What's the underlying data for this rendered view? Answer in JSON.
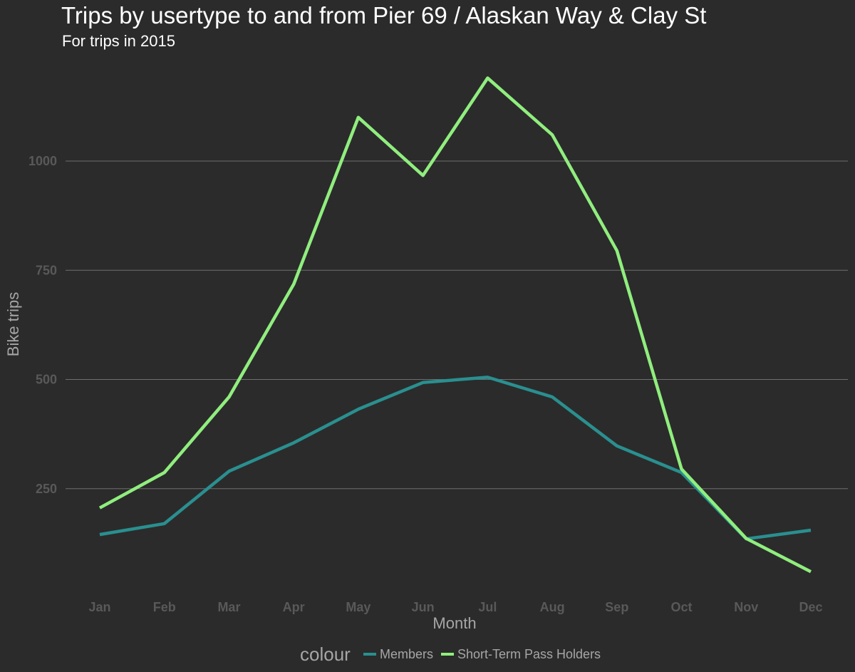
{
  "chart_data": {
    "type": "line",
    "title": "Trips by usertype to and from Pier 69 / Alaskan Way & Clay St",
    "subtitle": "For trips in 2015",
    "xlabel": "Month",
    "ylabel": "Bike trips",
    "categories": [
      "Jan",
      "Feb",
      "Mar",
      "Apr",
      "May",
      "Jun",
      "Jul",
      "Aug",
      "Sep",
      "Oct",
      "Nov",
      "Dec"
    ],
    "ylim": [
      30,
      1220
    ],
    "yticks": [
      250,
      500,
      750,
      1000
    ],
    "grid": true,
    "legend": {
      "title": "colour",
      "position": "bottom"
    },
    "series": [
      {
        "name": "Members",
        "color": "#2a8f8f",
        "values": [
          145,
          170,
          290,
          355,
          432,
          493,
          505,
          460,
          348,
          287,
          135,
          155
        ]
      },
      {
        "name": "Short-Term Pass Holders",
        "color": "#90ee7e",
        "values": [
          206,
          287,
          460,
          718,
          1100,
          967,
          1190,
          1060,
          795,
          295,
          136,
          60
        ]
      }
    ]
  }
}
